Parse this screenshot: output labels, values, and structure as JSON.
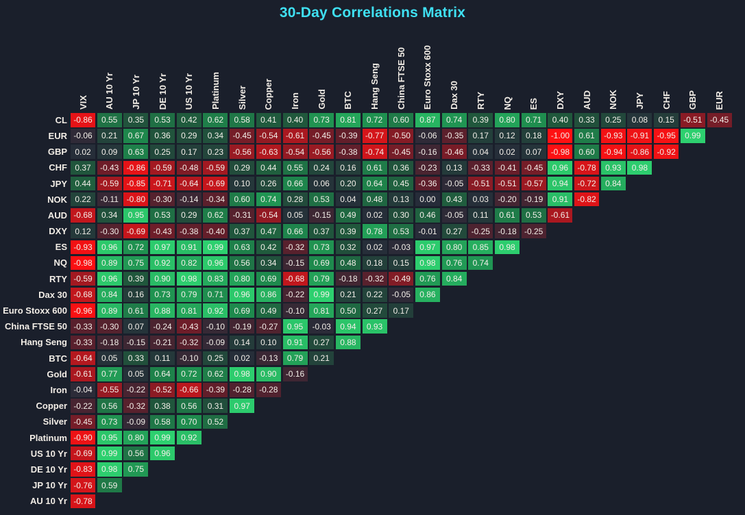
{
  "colors": {
    "background": "#1a1f2b",
    "title_accent": "#3fe0f2",
    "label_text": "#f2ede6",
    "cell_text": "#f3efe9"
  },
  "chart_data": {
    "type": "heatmap",
    "title": "30-Day Correlations Matrix",
    "value_range": [
      -1,
      1
    ],
    "colorscale": {
      "zero": "#262c39",
      "positive_stops": [
        "#262c39",
        "#20583c",
        "#1e8c4e",
        "#2ed270"
      ],
      "negative_stops": [
        "#262c39",
        "#641e2a",
        "#c8161c",
        "#ff1012"
      ]
    },
    "columns": [
      "VIX",
      "AU 10 Yr",
      "JP 10 Yr",
      "DE 10 Yr",
      "US 10 Yr",
      "Platinum",
      "Silver",
      "Copper",
      "Iron",
      "Gold",
      "BTC",
      "Hang Seng",
      "China FTSE 50",
      "Euro Stoxx 600",
      "Dax 30",
      "RTY",
      "NQ",
      "ES",
      "DXY",
      "AUD",
      "NOK",
      "JPY",
      "CHF",
      "GBP",
      "EUR"
    ],
    "rows": [
      {
        "label": "CL",
        "values": [
          -0.86,
          0.55,
          0.35,
          0.53,
          0.42,
          0.62,
          0.58,
          0.41,
          0.4,
          0.73,
          0.81,
          0.72,
          0.6,
          0.87,
          0.74,
          0.39,
          0.8,
          0.71,
          0.4,
          0.33,
          0.25,
          0.08,
          0.15,
          -0.51,
          -0.45
        ]
      },
      {
        "label": "EUR",
        "values": [
          -0.06,
          0.21,
          0.67,
          0.36,
          0.29,
          0.34,
          -0.45,
          -0.54,
          -0.61,
          -0.45,
          -0.39,
          -0.77,
          -0.5,
          -0.06,
          -0.35,
          0.17,
          0.12,
          0.18,
          -1.0,
          0.61,
          -0.93,
          -0.91,
          -0.95,
          0.99
        ]
      },
      {
        "label": "GBP",
        "values": [
          0.02,
          0.09,
          0.63,
          0.25,
          0.17,
          0.23,
          -0.56,
          -0.63,
          -0.54,
          -0.56,
          -0.38,
          -0.74,
          -0.45,
          -0.16,
          -0.46,
          0.04,
          0.02,
          0.07,
          -0.98,
          0.6,
          -0.94,
          -0.86,
          -0.92
        ]
      },
      {
        "label": "CHF",
        "values": [
          0.37,
          -0.43,
          -0.86,
          -0.59,
          -0.48,
          -0.59,
          0.29,
          0.44,
          0.55,
          0.24,
          0.16,
          0.61,
          0.36,
          -0.23,
          0.13,
          -0.33,
          -0.41,
          -0.45,
          0.96,
          -0.78,
          0.93,
          0.98
        ]
      },
      {
        "label": "JPY",
        "values": [
          0.44,
          -0.59,
          -0.85,
          -0.71,
          -0.64,
          -0.69,
          0.1,
          0.26,
          0.66,
          0.06,
          0.2,
          0.64,
          0.45,
          -0.36,
          -0.05,
          -0.51,
          -0.51,
          -0.57,
          0.94,
          -0.72,
          0.84
        ]
      },
      {
        "label": "NOK",
        "values": [
          0.22,
          -0.11,
          -0.8,
          -0.3,
          -0.14,
          -0.34,
          0.6,
          0.74,
          0.28,
          0.53,
          0.04,
          0.48,
          0.13,
          0.0,
          0.43,
          0.03,
          -0.2,
          -0.19,
          0.91,
          -0.82
        ]
      },
      {
        "label": "AUD",
        "values": [
          -0.68,
          0.34,
          0.95,
          0.53,
          0.29,
          0.62,
          -0.31,
          -0.54,
          0.05,
          -0.15,
          0.49,
          0.02,
          0.3,
          0.46,
          -0.05,
          0.11,
          0.61,
          0.53,
          -0.61
        ]
      },
      {
        "label": "DXY",
        "values": [
          0.12,
          -0.3,
          -0.69,
          -0.43,
          -0.38,
          -0.4,
          0.37,
          0.47,
          0.66,
          0.37,
          0.39,
          0.78,
          0.53,
          -0.01,
          0.27,
          -0.25,
          -0.18,
          -0.25
        ]
      },
      {
        "label": "ES",
        "values": [
          -0.93,
          0.96,
          0.72,
          0.97,
          0.91,
          0.99,
          0.63,
          0.42,
          -0.32,
          0.73,
          0.32,
          0.02,
          -0.03,
          0.97,
          0.8,
          0.85,
          0.98
        ]
      },
      {
        "label": "NQ",
        "values": [
          -0.98,
          0.89,
          0.75,
          0.92,
          0.82,
          0.96,
          0.56,
          0.34,
          -0.15,
          0.69,
          0.48,
          0.18,
          0.15,
          0.98,
          0.76,
          0.74
        ]
      },
      {
        "label": "RTY",
        "values": [
          -0.59,
          0.96,
          0.39,
          0.9,
          0.98,
          0.83,
          0.8,
          0.69,
          -0.68,
          0.79,
          -0.18,
          -0.32,
          -0.49,
          0.76,
          0.84
        ]
      },
      {
        "label": "Dax 30",
        "values": [
          -0.68,
          0.84,
          0.16,
          0.73,
          0.79,
          0.71,
          0.96,
          0.86,
          -0.22,
          0.99,
          0.21,
          0.22,
          -0.05,
          0.86
        ]
      },
      {
        "label": "Euro Stoxx 600",
        "values": [
          -0.96,
          0.89,
          0.61,
          0.88,
          0.81,
          0.92,
          0.69,
          0.49,
          -0.1,
          0.81,
          0.5,
          0.27,
          0.17
        ]
      },
      {
        "label": "China FTSE 50",
        "values": [
          -0.33,
          -0.3,
          0.07,
          -0.24,
          -0.43,
          -0.1,
          -0.19,
          -0.27,
          0.95,
          -0.03,
          0.94,
          0.93
        ]
      },
      {
        "label": "Hang Seng",
        "values": [
          -0.33,
          -0.18,
          -0.15,
          -0.21,
          -0.32,
          -0.09,
          0.14,
          0.1,
          0.91,
          0.27,
          0.88
        ]
      },
      {
        "label": "BTC",
        "values": [
          -0.64,
          0.05,
          0.33,
          0.11,
          -0.1,
          0.25,
          0.02,
          -0.13,
          0.79,
          0.21
        ]
      },
      {
        "label": "Gold",
        "values": [
          -0.61,
          0.77,
          0.05,
          0.64,
          0.72,
          0.62,
          0.98,
          0.9,
          -0.16
        ]
      },
      {
        "label": "Iron",
        "values": [
          -0.04,
          -0.55,
          -0.22,
          -0.52,
          -0.66,
          -0.39,
          -0.28,
          -0.28
        ]
      },
      {
        "label": "Copper",
        "values": [
          -0.22,
          0.56,
          -0.32,
          0.38,
          0.56,
          0.31,
          0.97
        ]
      },
      {
        "label": "Silver",
        "values": [
          -0.45,
          0.73,
          -0.09,
          0.58,
          0.7,
          0.52
        ]
      },
      {
        "label": "Platinum",
        "values": [
          -0.9,
          0.95,
          0.8,
          0.99,
          0.92
        ]
      },
      {
        "label": "US 10 Yr",
        "values": [
          -0.69,
          0.99,
          0.56,
          0.96
        ]
      },
      {
        "label": "DE 10 Yr",
        "values": [
          -0.83,
          0.98,
          0.75
        ]
      },
      {
        "label": "JP 10 Yr",
        "values": [
          -0.76,
          0.59
        ]
      },
      {
        "label": "AU 10 Yr",
        "values": [
          -0.78
        ]
      }
    ]
  }
}
